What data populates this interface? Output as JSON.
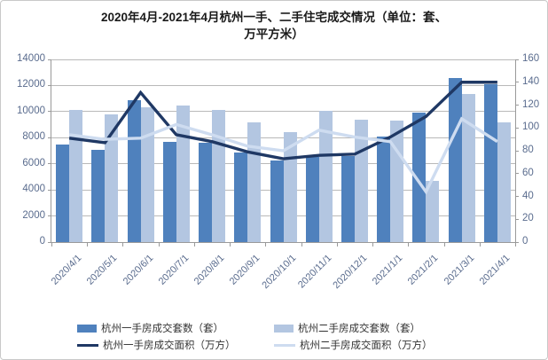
{
  "title_lines": [
    "2020年4月-2021年4月杭州一手、二手住宅成交情况（单位：套、",
    "万平方米）"
  ],
  "chart_data": {
    "type": "bar",
    "subtype": "clustered-bars-with-lines",
    "title": "2020年4月-2021年4月杭州一手、二手住宅成交情况（单位：套、万平方米）",
    "categories": [
      "2020/4/1",
      "2020/5/1",
      "2020/6/1",
      "2020/7/1",
      "2020/8/1",
      "2020/9/1",
      "2020/10/1",
      "2020/11/1",
      "2020/12/1",
      "2021/1/1",
      "2021/2/1",
      "2021/3/1",
      "2021/4/1"
    ],
    "series": [
      {
        "name": "杭州一手房成交套数（套）",
        "kind": "bar",
        "axis": "left",
        "color": "#4f81bd",
        "values": [
          7450,
          7050,
          10850,
          7650,
          7600,
          6840,
          6270,
          6500,
          6600,
          8100,
          9900,
          12550,
          12100
        ]
      },
      {
        "name": "杭州二手房成交套数（套）",
        "kind": "bar",
        "axis": "left",
        "color": "#b3c6e1",
        "values": [
          10100,
          9800,
          10300,
          10500,
          10100,
          9200,
          8400,
          10050,
          9350,
          9300,
          4700,
          11350,
          9200
        ]
      },
      {
        "name": "杭州一手房成交面积（万方）",
        "kind": "line",
        "axis": "right",
        "color": "#1f3864",
        "values": [
          91,
          87,
          131,
          94,
          88,
          79,
          73,
          76,
          77,
          92,
          110,
          140,
          140
        ]
      },
      {
        "name": "杭州二手房成交面积（万方）",
        "kind": "line",
        "axis": "right",
        "color": "#cedcf0",
        "values": [
          94,
          90,
          91,
          103,
          94,
          84,
          80,
          98,
          92,
          88,
          44,
          108,
          88
        ]
      }
    ],
    "left_axis": {
      "min": 0,
      "max": 14000,
      "step": 2000,
      "labels": [
        "0",
        "2000",
        "4000",
        "6000",
        "8000",
        "10000",
        "12000",
        "14000"
      ]
    },
    "right_axis": {
      "min": 0,
      "max": 160,
      "step": 20,
      "labels": [
        "0",
        "20",
        "40",
        "60",
        "80",
        "100",
        "120",
        "140",
        "160"
      ]
    },
    "grid": true,
    "legend_position": "bottom"
  },
  "colors": {
    "axis_text": "#5a6c8e",
    "grid_line": "#b9b9b9",
    "axis_line": "#9a9a9a",
    "title_text": "#1a1a1a",
    "legend_text": "#333333",
    "frame_border": "#c9c9c9",
    "background": "#ffffff"
  }
}
